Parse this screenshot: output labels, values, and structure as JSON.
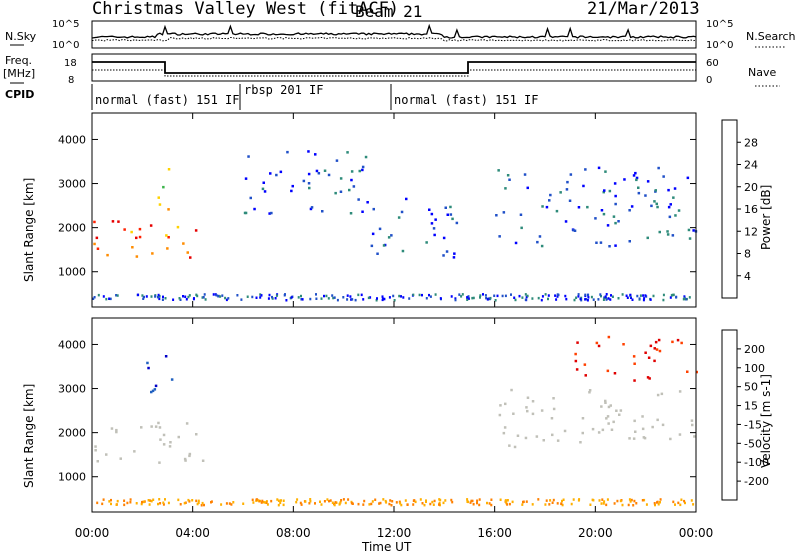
{
  "header": {
    "radar": "Christmas Valley West (fitACF)",
    "beam": "Beam 21",
    "date": "21/Mar/2013"
  },
  "noise_panel": {
    "left_label": "N.Sky",
    "right_label": "N.Search",
    "left_ticks": [
      "10^5",
      "10^0"
    ],
    "right_ticks": [
      "10^5",
      "10^0"
    ]
  },
  "freq_panel": {
    "left_label_1": "Freq.",
    "left_label_2": "[MHz]",
    "left_ticks": [
      "18",
      "8"
    ],
    "right_ticks": [
      "60",
      "0"
    ],
    "right_label": "Nave"
  },
  "cpid_panel": {
    "label": "CPID",
    "segments": [
      {
        "name": "normal (fast) 151 IF",
        "start": 0,
        "end": 6
      },
      {
        "name": "rbsp 201 IF",
        "start": 6,
        "end": 12
      },
      {
        "name": "normal (fast) 151 IF",
        "start": 12,
        "end": 24
      }
    ]
  },
  "chart_data": [
    {
      "type": "heatmap",
      "name": "power",
      "ylabel": "Slant Range [km]",
      "ylim": [
        200,
        4600
      ],
      "yticks": [
        "1000",
        "2000",
        "3000",
        "4000"
      ],
      "colorbar_label": "Power [dB]",
      "colorbar_ticks": [
        "28",
        "24",
        "20",
        "16",
        "12",
        "8",
        "4"
      ],
      "colorbar_colors": [
        "#0000ff",
        "#2050c8",
        "#2e8b7a",
        "#3cb44b",
        "#a0d000",
        "#ffd200",
        "#ff8c00",
        "#ff2000",
        "#e60000"
      ],
      "features": [
        {
          "t0": 0.0,
          "t1": 4.2,
          "r0": 1300,
          "r1": 2200,
          "level": "high"
        },
        {
          "t0": 2.6,
          "t1": 3.2,
          "r0": 2400,
          "r1": 3800,
          "level": "mid"
        },
        {
          "t0": 6.0,
          "t1": 11.0,
          "r0": 2300,
          "r1": 3800,
          "level": "low"
        },
        {
          "t0": 11.0,
          "t1": 14.5,
          "r0": 1300,
          "r1": 2700,
          "level": "low"
        },
        {
          "t0": 16.0,
          "t1": 24.0,
          "r0": 1600,
          "r1": 3400,
          "level": "low"
        }
      ]
    },
    {
      "type": "heatmap",
      "name": "velocity",
      "ylabel": "Slant Range [km]",
      "ylim": [
        200,
        4600
      ],
      "yticks": [
        "1000",
        "2000",
        "3000",
        "4000"
      ],
      "colorbar_label": "Velocity [m s-1]",
      "colorbar_ticks": [
        "200",
        "100",
        "50",
        "15",
        "-15",
        "-50",
        "-100",
        "-200"
      ],
      "colorbar_colors": [
        "#0000c8",
        "#2060c0",
        "#2e8b57",
        "#80d040",
        "#c0c0b8",
        "#ffb000",
        "#ff8000",
        "#ff4000",
        "#e00000"
      ],
      "features": [
        {
          "t0": 0.0,
          "t1": 4.5,
          "r0": 1300,
          "r1": 2300,
          "level": "zero"
        },
        {
          "t0": 2.0,
          "t1": 3.2,
          "r0": 2800,
          "r1": 3800,
          "level": "positive"
        },
        {
          "t0": 16.0,
          "t1": 24.0,
          "r0": 1700,
          "r1": 3000,
          "level": "zero"
        },
        {
          "t0": 19.0,
          "t1": 24.0,
          "r0": 3200,
          "r1": 4200,
          "level": "negative"
        }
      ]
    }
  ],
  "xaxis": {
    "label": "Time UT",
    "ticks": [
      "00:00",
      "04:00",
      "08:00",
      "12:00",
      "16:00",
      "20:00",
      "00:00"
    ]
  }
}
